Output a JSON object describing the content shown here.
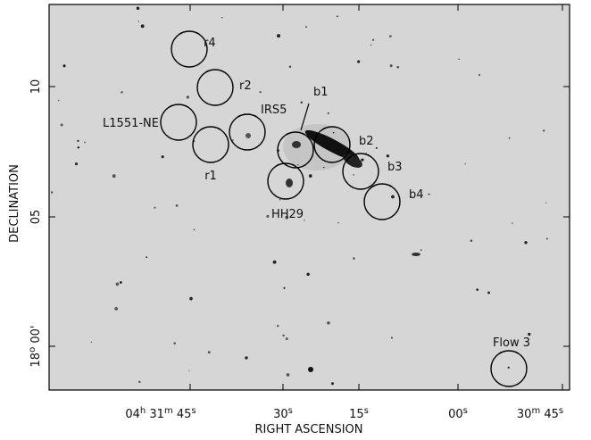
{
  "x_axis": {
    "title": "RIGHT ASCENSION",
    "ticks": [
      [
        "04",
        "h",
        " 31",
        "m",
        " 45",
        "s"
      ],
      [
        "30",
        "s"
      ],
      [
        "15",
        "s"
      ],
      [
        "00",
        "s"
      ],
      [
        "30",
        "m",
        " 45",
        "s"
      ]
    ]
  },
  "y_axis": {
    "title": "DECLINATION",
    "ticks": [
      [
        "10"
      ],
      [
        "05"
      ],
      [
        "18",
        "o",
        " 00'"
      ]
    ]
  },
  "regions": [
    {
      "label": "r4"
    },
    {
      "label": "r2"
    },
    {
      "label": "L1551-NE"
    },
    {
      "label": "r1"
    },
    {
      "label": "IRS5"
    },
    {
      "label": "b1"
    },
    {
      "label": "b2"
    },
    {
      "label": "b3"
    },
    {
      "label": "b4"
    },
    {
      "label": "HH29"
    },
    {
      "label": "Flow 3"
    }
  ]
}
